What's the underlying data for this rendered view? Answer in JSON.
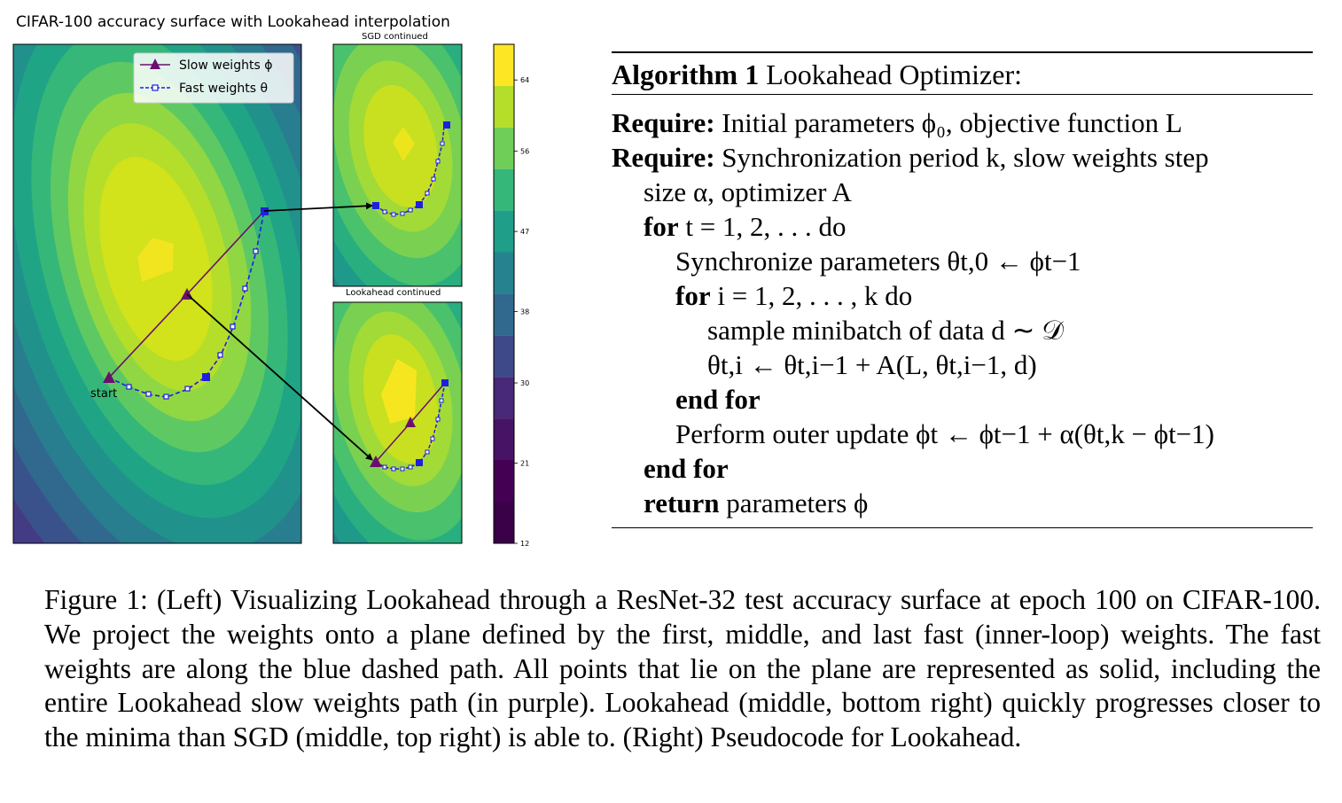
{
  "figure": {
    "main_title": "CIFAR-100 accuracy surface with Lookahead interpolation",
    "sgd_title": "SGD continued",
    "lookahead_title": "Lookahead continued",
    "legend": {
      "slow": "Slow weights ϕ",
      "fast": "Fast weights θ"
    },
    "start_label": "start",
    "colors": {
      "slow": "#6b0f6e",
      "fast": "#1f1fe0",
      "arrow": "#000000"
    }
  },
  "chart_data": {
    "type": "heatmap",
    "title": "CIFAR-100 accuracy surface with Lookahead interpolation",
    "colorbar": {
      "ticks": [
        "64",
        "56",
        "47",
        "38",
        "30",
        "21",
        "12"
      ],
      "min": 12,
      "max": 68
    },
    "series": [
      {
        "name": "Slow weights ϕ",
        "marker": "triangle",
        "style": "solid"
      },
      {
        "name": "Fast weights θ",
        "marker": "square",
        "style": "dashed"
      }
    ]
  },
  "algorithm": {
    "title_bold": "Algorithm 1",
    "title_rest": "Lookahead Optimizer:",
    "lines": [
      {
        "indent": 0,
        "bold": "Require:",
        "text": "Initial parameters ϕ₀, objective function L"
      },
      {
        "indent": 0,
        "bold": "Require:",
        "text": "Synchronization period k, slow weights step"
      },
      {
        "indent": 1,
        "bold": "",
        "text": "size α, optimizer A"
      },
      {
        "indent": 1,
        "bold": "for",
        "text": "t = 1, 2, . . .  do"
      },
      {
        "indent": 2,
        "bold": "",
        "text": "Synchronize parameters θt,0 ← ϕt−1"
      },
      {
        "indent": 2,
        "bold": "for",
        "text": "i = 1, 2, . . . , k do"
      },
      {
        "indent": 3,
        "bold": "",
        "text": "sample minibatch of data d ∼ 𝒟"
      },
      {
        "indent": 3,
        "bold": "",
        "text": "θt,i ← θt,i−1 + A(L, θt,i−1, d)"
      },
      {
        "indent": 2,
        "bold": "end for",
        "text": ""
      },
      {
        "indent": 2,
        "bold": "",
        "text": "Perform outer update ϕt ← ϕt−1 + α(θt,k − ϕt−1)"
      },
      {
        "indent": 1,
        "bold": "end for",
        "text": ""
      },
      {
        "indent": 1,
        "bold": "return",
        "text": "parameters ϕ"
      }
    ]
  },
  "caption": "Figure 1: (Left) Visualizing Lookahead through a ResNet-32 test accuracy surface at epoch 100 on CIFAR-100. We project the weights onto a plane defined by the first, middle, and last fast (inner-loop) weights. The fast weights are along the blue dashed path. All points that lie on the plane are represented as solid, including the entire Lookahead slow weights path (in purple). Lookahead (middle, bottom right) quickly progresses closer to the minima than SGD (middle, top right) is able to. (Right) Pseudocode for Lookahead."
}
